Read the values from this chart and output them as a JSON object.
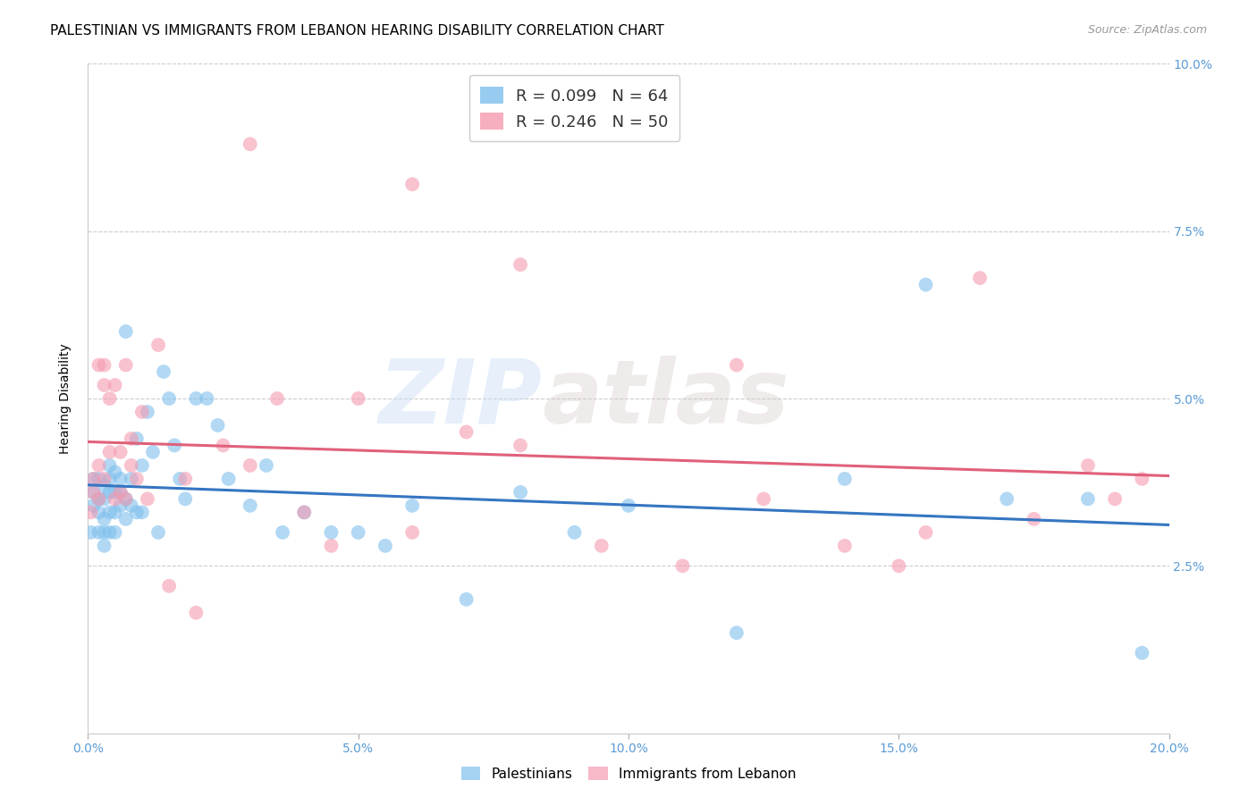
{
  "title": "PALESTINIAN VS IMMIGRANTS FROM LEBANON HEARING DISABILITY CORRELATION CHART",
  "source": "Source: ZipAtlas.com",
  "ylabel": "Hearing Disability",
  "watermark": "ZIPatlas",
  "xlim": [
    0.0,
    0.2
  ],
  "ylim": [
    0.0,
    0.1
  ],
  "xticks": [
    0.0,
    0.05,
    0.1,
    0.15,
    0.2
  ],
  "xticklabels": [
    "0.0%",
    "5.0%",
    "10.0%",
    "15.0%",
    "20.0%"
  ],
  "yticks": [
    0.0,
    0.025,
    0.05,
    0.075,
    0.1
  ],
  "yticklabels_right": [
    "",
    "2.5%",
    "5.0%",
    "7.5%",
    "10.0%"
  ],
  "blue_color": "#7fbfed",
  "pink_color": "#f59ab0",
  "blue_line_color": "#3575c2",
  "pink_line_color": "#e0607a",
  "palestinians_x": [
    0.0005,
    0.001,
    0.001,
    0.001,
    0.002,
    0.002,
    0.002,
    0.002,
    0.003,
    0.003,
    0.003,
    0.003,
    0.003,
    0.004,
    0.004,
    0.004,
    0.004,
    0.004,
    0.005,
    0.005,
    0.005,
    0.005,
    0.006,
    0.006,
    0.006,
    0.007,
    0.007,
    0.007,
    0.008,
    0.008,
    0.009,
    0.009,
    0.01,
    0.01,
    0.011,
    0.012,
    0.013,
    0.014,
    0.015,
    0.016,
    0.017,
    0.018,
    0.02,
    0.022,
    0.024,
    0.026,
    0.03,
    0.033,
    0.036,
    0.04,
    0.045,
    0.05,
    0.055,
    0.06,
    0.07,
    0.08,
    0.09,
    0.1,
    0.12,
    0.14,
    0.155,
    0.17,
    0.185,
    0.195
  ],
  "palestinians_y": [
    0.03,
    0.034,
    0.036,
    0.038,
    0.03,
    0.033,
    0.035,
    0.038,
    0.028,
    0.03,
    0.032,
    0.035,
    0.037,
    0.03,
    0.033,
    0.036,
    0.038,
    0.04,
    0.03,
    0.033,
    0.036,
    0.039,
    0.034,
    0.036,
    0.038,
    0.032,
    0.035,
    0.06,
    0.034,
    0.038,
    0.033,
    0.044,
    0.033,
    0.04,
    0.048,
    0.042,
    0.03,
    0.054,
    0.05,
    0.043,
    0.038,
    0.035,
    0.05,
    0.05,
    0.046,
    0.038,
    0.034,
    0.04,
    0.03,
    0.033,
    0.03,
    0.03,
    0.028,
    0.034,
    0.02,
    0.036,
    0.03,
    0.034,
    0.015,
    0.038,
    0.067,
    0.035,
    0.035,
    0.012
  ],
  "lebanon_x": [
    0.0005,
    0.001,
    0.001,
    0.002,
    0.002,
    0.002,
    0.003,
    0.003,
    0.003,
    0.004,
    0.004,
    0.005,
    0.005,
    0.006,
    0.006,
    0.007,
    0.007,
    0.008,
    0.008,
    0.009,
    0.01,
    0.011,
    0.013,
    0.015,
    0.018,
    0.02,
    0.025,
    0.03,
    0.035,
    0.04,
    0.05,
    0.06,
    0.07,
    0.08,
    0.095,
    0.11,
    0.125,
    0.14,
    0.155,
    0.165,
    0.175,
    0.185,
    0.19,
    0.195,
    0.06,
    0.15,
    0.12,
    0.08,
    0.045,
    0.03
  ],
  "lebanon_y": [
    0.033,
    0.036,
    0.038,
    0.035,
    0.04,
    0.055,
    0.052,
    0.055,
    0.038,
    0.042,
    0.05,
    0.035,
    0.052,
    0.036,
    0.042,
    0.035,
    0.055,
    0.04,
    0.044,
    0.038,
    0.048,
    0.035,
    0.058,
    0.022,
    0.038,
    0.018,
    0.043,
    0.04,
    0.05,
    0.033,
    0.05,
    0.03,
    0.045,
    0.07,
    0.028,
    0.025,
    0.035,
    0.028,
    0.03,
    0.068,
    0.032,
    0.04,
    0.035,
    0.038,
    0.082,
    0.025,
    0.055,
    0.043,
    0.028,
    0.088
  ],
  "background_color": "#ffffff",
  "grid_color": "#cccccc",
  "tick_color": "#5b9bd5",
  "title_fontsize": 11,
  "axis_label_fontsize": 10,
  "tick_fontsize": 10,
  "legend_R_N_blue": "R = 0.099   N = 64",
  "legend_R_N_pink": "R = 0.246   N = 50",
  "legend_label_blue": "Palestinians",
  "legend_label_pink": "Immigrants from Lebanon"
}
